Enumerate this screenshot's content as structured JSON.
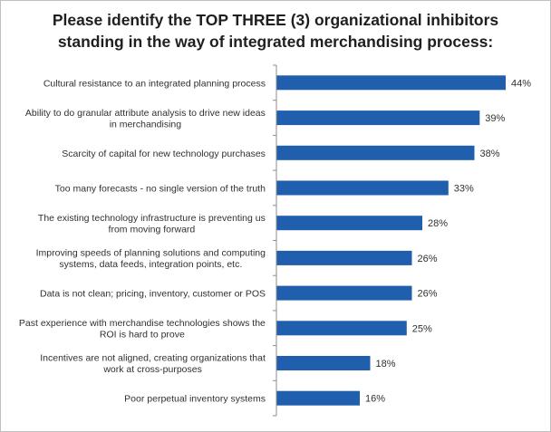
{
  "chart_data": {
    "type": "bar",
    "orientation": "horizontal",
    "title": "Please identify the TOP THREE (3) organizational inhibitors standing in the way of integrated merchandising process:",
    "title_lines": [
      "Please identify the TOP THREE (3) organizational inhibitors",
      "standing in the way of integrated merchandising process:"
    ],
    "categories": [
      "Cultural resistance to an integrated planning process",
      "Ability to do granular attribute analysis to drive new ideas in merchandising",
      "Scarcity of capital for new technology purchases",
      "Too many forecasts - no single version of the truth",
      "The existing technology infrastructure is preventing us from moving forward",
      "Improving speeds of planning solutions and computing systems, data feeds, integration points, etc.",
      "Data is not clean; pricing, inventory, customer or POS",
      "Past experience with merchandise technologies shows the ROI is hard to prove",
      "Incentives are not aligned, creating organizations that work at cross-purposes",
      "Poor perpetual inventory systems"
    ],
    "category_lines": [
      [
        "Cultural resistance to an integrated planning process"
      ],
      [
        "Ability to do granular attribute analysis to drive new ideas",
        "in merchandising"
      ],
      [
        "Scarcity of capital for new technology purchases"
      ],
      [
        "Too many forecasts - no single version of the truth"
      ],
      [
        "The existing technology infrastructure is preventing us",
        "from moving forward"
      ],
      [
        "Improving speeds of planning solutions and computing",
        "systems, data feeds, integration points, etc."
      ],
      [
        "Data is not clean; pricing, inventory, customer or POS"
      ],
      [
        "Past experience with merchandise technologies shows the",
        "ROI is hard to prove"
      ],
      [
        "Incentives are not aligned, creating organizations that",
        "work at cross-purposes"
      ],
      [
        "Poor perpetual inventory systems"
      ]
    ],
    "values": [
      44,
      39,
      38,
      33,
      28,
      26,
      26,
      25,
      18,
      16
    ],
    "value_labels": [
      "44%",
      "39%",
      "38%",
      "33%",
      "28%",
      "26%",
      "26%",
      "25%",
      "18%",
      "16%"
    ],
    "xlabel": "",
    "ylabel": "",
    "xlim": [
      0,
      44
    ],
    "grid": false,
    "legend": "none",
    "bar_color": "#1f5fae",
    "axis_color": "#8c8c8c"
  }
}
